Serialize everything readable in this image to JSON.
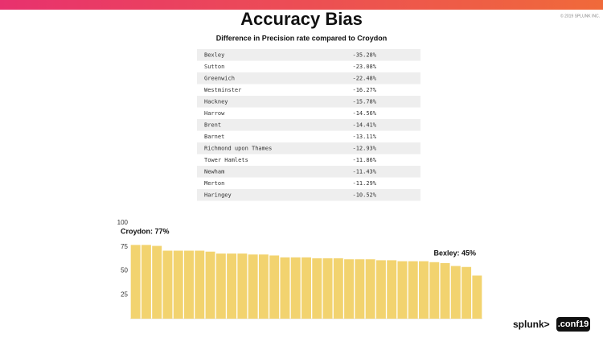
{
  "header": {
    "title": "Accuracy Bias",
    "subtitle": "Difference in Precision rate compared to Croydon",
    "copyright": "© 2019 SPLUNK INC."
  },
  "table": {
    "rows": [
      [
        "Bexley",
        "-35.28%"
      ],
      [
        "Sutton",
        "-23.08%"
      ],
      [
        "Greenwich",
        "-22.48%"
      ],
      [
        "Westminster",
        "-16.27%"
      ],
      [
        "Hackney",
        "-15.78%"
      ],
      [
        "Harrow",
        "-14.56%"
      ],
      [
        "Brent",
        "-14.41%"
      ],
      [
        "Barnet",
        "-13.11%"
      ],
      [
        "Richmond upon Thames",
        "-12.93%"
      ],
      [
        "Tower Hamlets",
        "-11.86%"
      ],
      [
        "Newham",
        "-11.43%"
      ],
      [
        "Merton",
        "-11.29%"
      ],
      [
        "Haringey",
        "-10.52%"
      ]
    ]
  },
  "chart_data": {
    "type": "bar",
    "values": [
      77,
      77,
      76,
      71,
      71,
      71,
      71,
      70,
      68,
      68,
      68,
      67,
      67,
      66,
      64,
      64,
      64,
      63,
      63,
      63,
      62,
      62,
      62,
      61,
      61,
      60,
      60,
      60,
      59,
      58,
      55,
      54,
      45
    ],
    "color": "#f2d36f",
    "ylim": [
      0,
      100
    ],
    "yticks": [
      25,
      50,
      75,
      100
    ],
    "annotations": [
      "Croydon: 77%",
      "Bexley: 45%"
    ]
  },
  "footer": {
    "logo": "splunk>",
    "conf": ".conf19"
  }
}
